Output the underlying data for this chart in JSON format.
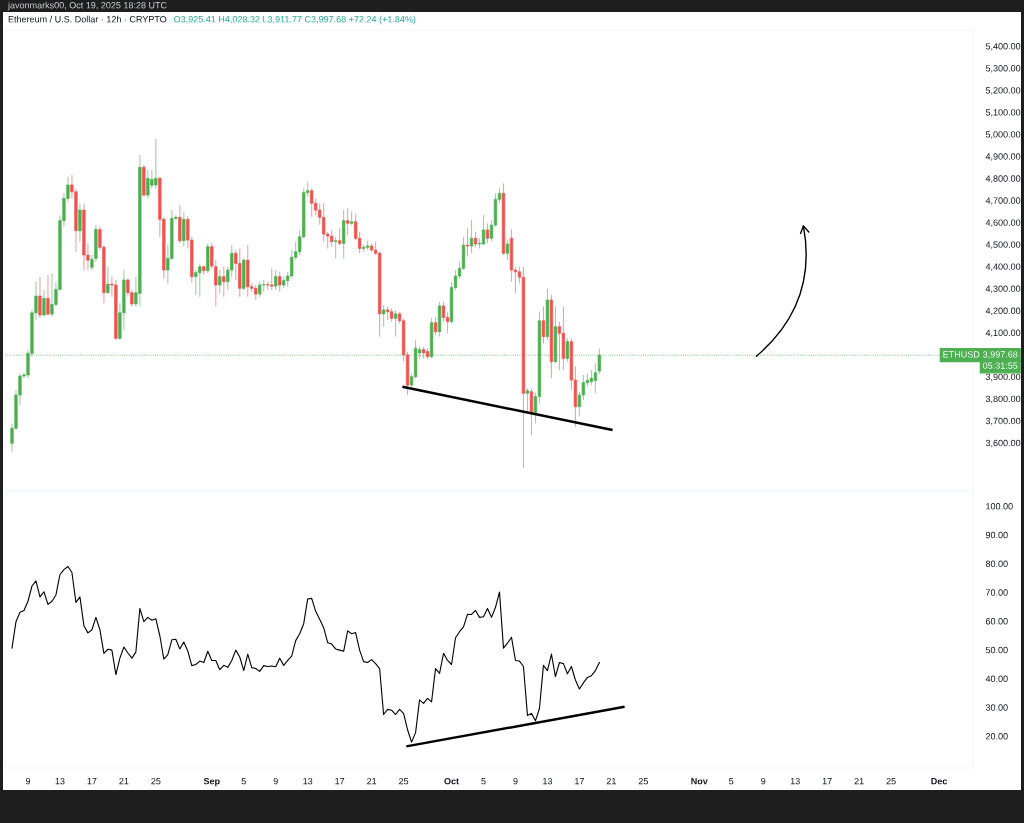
{
  "chart_data": [
    {
      "type": "candlestick",
      "title": "Ethereum / U.S. Dollar · 12h · CRYPTO",
      "annotations": [
        "O3,925.41 H4,028.32 L3,911.77 C3,997.68 +72.24 (+1.84%)",
        "javonmarks00, Oct 19, 2025 18:28 UTC",
        "05:31:55",
        "3,997.68"
      ],
      "colors": [
        "#4caf50",
        "#4caf50",
        "#4caf50",
        "#4caf50",
        "#4caf50",
        "#4caf50",
        "#4caf50",
        "#ef5350",
        "#4caf50",
        "#ef5350",
        "#4caf50",
        "#4caf50",
        "#4caf50",
        "#4caf50",
        "#4caf50",
        "#ef5350",
        "#ef5350",
        "#4caf50",
        "#ef5350",
        "#ef5350",
        "#4caf50",
        "#4caf50",
        "#ef5350",
        "#ef5350",
        "#4caf50",
        "#ef5350",
        "#ef5350",
        "#4caf50",
        "#4caf50",
        "#ef5350",
        "#ef5350",
        "#4caf50",
        "#4caf50",
        "#ef5350",
        "#4caf50",
        "#4caf50",
        "#4caf50",
        "#ef5350",
        "#ef5350",
        "#4caf50",
        "#4caf50",
        "#4caf50",
        "#ef5350",
        "#4caf50",
        "#ef5350",
        "#ef5350",
        "#4caf50",
        "#4caf50",
        "#ef5350",
        "#4caf50",
        "#ef5350",
        "#ef5350",
        "#4caf50",
        "#ef5350",
        "#4caf50",
        "#4caf50",
        "#ef5350",
        "#ef5350",
        "#4caf50",
        "#ef5350",
        "#ef5350",
        "#ef5350",
        "#4caf50",
        "#4caf50",
        "#ef5350",
        "#ef5350",
        "#4caf50",
        "#ef5350",
        "#4caf50",
        "#4caf50",
        "#4caf50",
        "#4caf50",
        "#4caf50",
        "#4caf50",
        "#4caf50",
        "#ef5350",
        "#ef5350",
        "#ef5350",
        "#ef5350",
        "#ef5350",
        "#ef5350",
        "#4caf50",
        "#ef5350",
        "#4caf50",
        "#ef5350",
        "#4caf50",
        "#ef5350",
        "#ef5350",
        "#4caf50",
        "#4caf50",
        "#ef5350",
        "#ef5350",
        "#ef5350",
        "#4caf50",
        "#ef5350",
        "#ef5350",
        "#4caf50",
        "#ef5350",
        "#ef5350",
        "#ef5350",
        "#4caf50",
        "#4caf50",
        "#4caf50",
        "#ef5350",
        "#ef5350",
        "#4caf50",
        "#ef5350",
        "#4caf50",
        "#ef5350",
        "#ef5350",
        "#4caf50",
        "#4caf50",
        "#4caf50",
        "#4caf50",
        "#ef5350",
        "#4caf50",
        "#ef5350",
        "#4caf50",
        "#4caf50",
        "#ef5350",
        "#4caf50",
        "#4caf50",
        "#4caf50",
        "#ef5350",
        "#4caf50",
        "#ef5350",
        "#ef5350",
        "#ef5350",
        "#ef5350",
        "#4caf50",
        "#ef5350",
        "#4caf50",
        "#4caf50",
        "#ef5350",
        "#4caf50",
        "#ef5350",
        "#4caf50",
        "#ef5350",
        "#ef5350",
        "#4caf50",
        "#ef5350",
        "#ef5350",
        "#4caf50",
        "#4caf50",
        "#4caf50",
        "#4caf50",
        "#4caf50",
        "#4caf50"
      ],
      "x": [
        "2025-08-07T00:00",
        "2025-08-07T12:00",
        "2025-08-08T00:00",
        "2025-08-08T12:00",
        "2025-08-09T00:00",
        "2025-08-09T12:00",
        "2025-08-10T00:00",
        "2025-08-10T12:00",
        "2025-08-11T00:00",
        "2025-08-11T12:00",
        "2025-08-12T00:00",
        "2025-08-12T12:00",
        "2025-08-13T00:00",
        "2025-08-13T12:00",
        "2025-08-14T00:00",
        "2025-08-14T12:00",
        "2025-08-15T00:00",
        "2025-08-15T12:00",
        "2025-08-16T00:00",
        "2025-08-16T12:00",
        "2025-08-17T00:00",
        "2025-08-17T12:00",
        "2025-08-18T00:00",
        "2025-08-18T12:00",
        "2025-08-19T00:00",
        "2025-08-19T12:00",
        "2025-08-20T00:00",
        "2025-08-20T12:00",
        "2025-08-21T00:00",
        "2025-08-21T12:00",
        "2025-08-22T00:00",
        "2025-08-22T12:00",
        "2025-08-23T00:00",
        "2025-08-23T12:00",
        "2025-08-24T00:00",
        "2025-08-24T12:00",
        "2025-08-25T00:00",
        "2025-08-25T12:00",
        "2025-08-26T00:00",
        "2025-08-26T12:00",
        "2025-08-27T00:00",
        "2025-08-27T12:00",
        "2025-08-28T00:00",
        "2025-08-28T12:00",
        "2025-08-29T00:00",
        "2025-08-29T12:00",
        "2025-08-30T00:00",
        "2025-08-30T12:00",
        "2025-08-31T00:00",
        "2025-08-31T12:00",
        "2025-09-01T00:00",
        "2025-09-01T12:00",
        "2025-09-02T00:00",
        "2025-09-02T12:00",
        "2025-09-03T00:00",
        "2025-09-03T12:00",
        "2025-09-04T00:00",
        "2025-09-04T12:00",
        "2025-09-05T00:00",
        "2025-09-05T12:00",
        "2025-09-06T00:00",
        "2025-09-06T12:00",
        "2025-09-07T00:00",
        "2025-09-07T12:00",
        "2025-09-08T00:00",
        "2025-09-08T12:00",
        "2025-09-09T00:00",
        "2025-09-09T12:00",
        "2025-09-10T00:00",
        "2025-09-10T12:00",
        "2025-09-11T00:00",
        "2025-09-11T12:00",
        "2025-09-12T00:00",
        "2025-09-12T12:00",
        "2025-09-13T00:00",
        "2025-09-13T12:00",
        "2025-09-14T00:00",
        "2025-09-14T12:00",
        "2025-09-15T00:00",
        "2025-09-15T12:00",
        "2025-09-16T00:00",
        "2025-09-16T12:00",
        "2025-09-17T00:00",
        "2025-09-17T12:00",
        "2025-09-18T00:00",
        "2025-09-18T12:00",
        "2025-09-19T00:00",
        "2025-09-19T12:00",
        "2025-09-20T00:00",
        "2025-09-20T12:00",
        "2025-09-21T00:00",
        "2025-09-21T12:00",
        "2025-09-22T00:00",
        "2025-09-22T12:00",
        "2025-09-23T00:00",
        "2025-09-23T12:00",
        "2025-09-24T00:00",
        "2025-09-24T12:00",
        "2025-09-25T00:00",
        "2025-09-25T12:00",
        "2025-09-26T00:00",
        "2025-09-26T12:00",
        "2025-09-27T00:00",
        "2025-09-27T12:00",
        "2025-09-28T00:00",
        "2025-09-28T12:00",
        "2025-09-29T00:00",
        "2025-09-29T12:00",
        "2025-09-30T00:00",
        "2025-09-30T12:00",
        "2025-10-01T00:00",
        "2025-10-01T12:00",
        "2025-10-02T00:00",
        "2025-10-02T12:00",
        "2025-10-03T00:00",
        "2025-10-03T12:00",
        "2025-10-04T00:00",
        "2025-10-04T12:00",
        "2025-10-05T00:00",
        "2025-10-05T12:00",
        "2025-10-06T00:00",
        "2025-10-06T12:00",
        "2025-10-07T00:00",
        "2025-10-07T12:00",
        "2025-10-08T00:00",
        "2025-10-08T12:00",
        "2025-10-09T00:00",
        "2025-10-09T12:00",
        "2025-10-10T00:00",
        "2025-10-10T12:00",
        "2025-10-11T00:00",
        "2025-10-11T12:00",
        "2025-10-12T00:00",
        "2025-10-12T12:00",
        "2025-10-13T00:00",
        "2025-10-13T12:00",
        "2025-10-14T00:00",
        "2025-10-14T12:00",
        "2025-10-15T00:00",
        "2025-10-15T12:00",
        "2025-10-16T00:00",
        "2025-10-16T12:00",
        "2025-10-17T00:00",
        "2025-10-17T12:00",
        "2025-10-18T00:00",
        "2025-10-18T12:00",
        "2025-10-19T00:00",
        "2025-10-19T12:00"
      ],
      "ohlc": [
        [
          3598,
          3688,
          3560,
          3666
        ],
        [
          3666,
          3840,
          3658,
          3817
        ],
        [
          3817,
          3915,
          3772,
          3903
        ],
        [
          3903,
          3920,
          3895,
          3908
        ],
        [
          3908,
          4021,
          3893,
          4006
        ],
        [
          4006,
          4203,
          3991,
          4190
        ],
        [
          4190,
          4331,
          4157,
          4266
        ],
        [
          4266,
          4354,
          4165,
          4180
        ],
        [
          4180,
          4293,
          4172,
          4255
        ],
        [
          4255,
          4361,
          4180,
          4184
        ],
        [
          4184,
          4369,
          4172,
          4228
        ],
        [
          4228,
          4331,
          4218,
          4296
        ],
        [
          4296,
          4633,
          4293,
          4608
        ],
        [
          4608,
          4732,
          4581,
          4709
        ],
        [
          4709,
          4807,
          4694,
          4770
        ],
        [
          4770,
          4815,
          4709,
          4739
        ],
        [
          4739,
          4754,
          4467,
          4562
        ],
        [
          4562,
          4686,
          4512,
          4656
        ],
        [
          4656,
          4686,
          4384,
          4452
        ],
        [
          4452,
          4505,
          4384,
          4429
        ],
        [
          4396,
          4452,
          4384,
          4432
        ],
        [
          4437,
          4588,
          4422,
          4568
        ],
        [
          4568,
          4581,
          4475,
          4487
        ],
        [
          4487,
          4497,
          4233,
          4281
        ],
        [
          4281,
          4399,
          4278,
          4320
        ],
        [
          4320,
          4354,
          4263,
          4316
        ],
        [
          4316,
          4339,
          4066,
          4074
        ],
        [
          4074,
          4233,
          4066,
          4190
        ],
        [
          4190,
          4384,
          4112,
          4339
        ],
        [
          4339,
          4346,
          4263,
          4281
        ],
        [
          4281,
          4293,
          4218,
          4230
        ],
        [
          4230,
          4354,
          4218,
          4281
        ],
        [
          4278,
          4906,
          4218,
          4850
        ],
        [
          4850,
          4860,
          4717,
          4724
        ],
        [
          4724,
          4838,
          4709,
          4800
        ],
        [
          4769,
          4838,
          4754,
          4795
        ],
        [
          4770,
          4981,
          4754,
          4800
        ],
        [
          4800,
          4807,
          4535,
          4614
        ],
        [
          4614,
          4626,
          4346,
          4384
        ],
        [
          4384,
          4497,
          4323,
          4437
        ],
        [
          4437,
          4656,
          4429,
          4618
        ],
        [
          4618,
          4633,
          4611,
          4623
        ],
        [
          4623,
          4679,
          4505,
          4517
        ],
        [
          4517,
          4648,
          4490,
          4614
        ],
        [
          4614,
          4629,
          4482,
          4520
        ],
        [
          4520,
          4535,
          4327,
          4354
        ],
        [
          4354,
          4384,
          4271,
          4372
        ],
        [
          4372,
          4414,
          4263,
          4399
        ],
        [
          4399,
          4407,
          4361,
          4381
        ],
        [
          4381,
          4505,
          4369,
          4490
        ],
        [
          4490,
          4505,
          4392,
          4402
        ],
        [
          4399,
          4429,
          4218,
          4316
        ],
        [
          4316,
          4384,
          4278,
          4354
        ],
        [
          4354,
          4399,
          4263,
          4331
        ],
        [
          4331,
          4399,
          4293,
          4384
        ],
        [
          4384,
          4498,
          4354,
          4460
        ],
        [
          4460,
          4475,
          4339,
          4414
        ],
        [
          4414,
          4482,
          4263,
          4301
        ],
        [
          4301,
          4437,
          4293,
          4429
        ],
        [
          4429,
          4498,
          4263,
          4308
        ],
        [
          4308,
          4324,
          4286,
          4301
        ],
        [
          4301,
          4316,
          4248,
          4275
        ],
        [
          4275,
          4331,
          4262,
          4316
        ],
        [
          4316,
          4339,
          4286,
          4318
        ],
        [
          4318,
          4331,
          4293,
          4316
        ],
        [
          4316,
          4392,
          4293,
          4311
        ],
        [
          4311,
          4384,
          4293,
          4354
        ],
        [
          4354,
          4376,
          4286,
          4316
        ],
        [
          4316,
          4354,
          4301,
          4336
        ],
        [
          4336,
          4376,
          4308,
          4357
        ],
        [
          4357,
          4475,
          4346,
          4442
        ],
        [
          4442,
          4513,
          4429,
          4467
        ],
        [
          4467,
          4566,
          4452,
          4535
        ],
        [
          4535,
          4755,
          4528,
          4735
        ],
        [
          4735,
          4785,
          4717,
          4744
        ],
        [
          4744,
          4755,
          4626,
          4687
        ],
        [
          4687,
          4709,
          4634,
          4656
        ],
        [
          4656,
          4687,
          4588,
          4623
        ],
        [
          4623,
          4687,
          4513,
          4547
        ],
        [
          4547,
          4558,
          4482,
          4538
        ],
        [
          4538,
          4566,
          4490,
          4513
        ],
        [
          4513,
          4535,
          4437,
          4517
        ],
        [
          4517,
          4573,
          4497,
          4505
        ],
        [
          4505,
          4656,
          4437,
          4608
        ],
        [
          4608,
          4664,
          4543,
          4596
        ],
        [
          4596,
          4649,
          4588,
          4603
        ],
        [
          4603,
          4641,
          4520,
          4528
        ],
        [
          4528,
          4558,
          4460,
          4482
        ],
        [
          4482,
          4498,
          4467,
          4487
        ],
        [
          4487,
          4517,
          4475,
          4493
        ],
        [
          4493,
          4505,
          4467,
          4475
        ],
        [
          4475,
          4513,
          4452,
          4460
        ],
        [
          4460,
          4467,
          4082,
          4185
        ],
        [
          4185,
          4225,
          4127,
          4203
        ],
        [
          4203,
          4218,
          4157,
          4195
        ],
        [
          4195,
          4210,
          4150,
          4165
        ],
        [
          4165,
          4203,
          4082,
          4185
        ],
        [
          4185,
          4195,
          4142,
          4154
        ],
        [
          4154,
          4165,
          3968,
          3999
        ],
        [
          3999,
          4014,
          3817,
          3862
        ],
        [
          3862,
          3915,
          3855,
          3900
        ],
        [
          3900,
          4067,
          3893,
          4029
        ],
        [
          4008,
          4036,
          3983,
          4023
        ],
        [
          4023,
          4036,
          3983,
          4008
        ],
        [
          4014,
          4029,
          3983,
          3991
        ],
        [
          3991,
          4165,
          3983,
          4145
        ],
        [
          4145,
          4172,
          4089,
          4104
        ],
        [
          4104,
          4240,
          4082,
          4221
        ],
        [
          4221,
          4240,
          4150,
          4169
        ],
        [
          4169,
          4195,
          4097,
          4150
        ],
        [
          4150,
          4331,
          4142,
          4305
        ],
        [
          4305,
          4384,
          4293,
          4357
        ],
        [
          4357,
          4422,
          4346,
          4392
        ],
        [
          4392,
          4535,
          4384,
          4497
        ],
        [
          4497,
          4573,
          4445,
          4493
        ],
        [
          4493,
          4611,
          4460,
          4528
        ],
        [
          4528,
          4558,
          4490,
          4502
        ],
        [
          4502,
          4528,
          4482,
          4505
        ],
        [
          4502,
          4634,
          4498,
          4566
        ],
        [
          4566,
          4596,
          4505,
          4528
        ],
        [
          4528,
          4611,
          4513,
          4588
        ],
        [
          4588,
          4732,
          4581,
          4705
        ],
        [
          4705,
          4755,
          4687,
          4732
        ],
        [
          4732,
          4777,
          4452,
          4460
        ],
        [
          4460,
          4520,
          4430,
          4502
        ],
        [
          4528,
          4568,
          4331,
          4384
        ],
        [
          4384,
          4399,
          4278,
          4376
        ],
        [
          4376,
          4399,
          4324,
          4351
        ],
        [
          4351,
          4399,
          3485,
          3825
        ],
        [
          3825,
          3847,
          3734,
          3837
        ],
        [
          3832,
          3847,
          3636,
          3737
        ],
        [
          3737,
          3828,
          3689,
          3810
        ],
        [
          3810,
          4195,
          3779,
          4154
        ],
        [
          4154,
          4218,
          4051,
          4082
        ],
        [
          4082,
          4301,
          4067,
          4248
        ],
        [
          4248,
          4271,
          3893,
          3968
        ],
        [
          3968,
          4218,
          3961,
          4127
        ],
        [
          4127,
          4150,
          3930,
          4097
        ],
        [
          4097,
          4218,
          3930,
          3983
        ],
        [
          3983,
          4074,
          3968,
          4059
        ],
        [
          4059,
          4074,
          3840,
          3885
        ],
        [
          3885,
          3946,
          3673,
          3764
        ],
        [
          3764,
          3832,
          3719,
          3817
        ],
        [
          3817,
          3908,
          3794,
          3873
        ],
        [
          3873,
          3915,
          3855,
          3883
        ],
        [
          3878,
          3930,
          3862,
          3893
        ],
        [
          3883,
          3961,
          3825,
          3918
        ],
        [
          3925.41,
          4028.32,
          3911.77,
          3997.68
        ]
      ],
      "series": [
        {
          "type": "line",
          "color": "#000000",
          "x": [
            "2025-09-25T00:00",
            "2025-10-21T00:00"
          ],
          "values": [
            3853,
            3659
          ]
        }
      ],
      "ref_lines": [
        {
          "axis": "y",
          "value": 3997.68,
          "label": "ETHUSD",
          "color": "#4caf50",
          "line_style": "dotted"
        }
      ],
      "xlim": [
        "2025-08-06T03:00",
        "2025-12-05T06:00"
      ],
      "ylim": [
        3386,
        5473
      ],
      "yticks": [
        {
          "value": 3600,
          "label": "3,600.00"
        },
        {
          "value": 3700,
          "label": "3,700.00"
        },
        {
          "value": 3800,
          "label": "3,800.00"
        },
        {
          "value": 3900,
          "label": "3,900.00"
        },
        {
          "value": 4100,
          "label": "4,100.00"
        },
        {
          "value": 4200,
          "label": "4,200.00"
        },
        {
          "value": 4300,
          "label": "4,300.00"
        },
        {
          "value": 4400,
          "label": "4,400.00"
        },
        {
          "value": 4500,
          "label": "4,500.00"
        },
        {
          "value": 4600,
          "label": "4,600.00"
        },
        {
          "value": 4700,
          "label": "4,700.00"
        },
        {
          "value": 4800,
          "label": "4,800.00"
        },
        {
          "value": 4900,
          "label": "4,900.00"
        },
        {
          "value": 5000,
          "label": "5,000.00"
        },
        {
          "value": 5100,
          "label": "5,100.00"
        },
        {
          "value": 5200,
          "label": "5,200.00"
        },
        {
          "value": 5300,
          "label": "5,300.00"
        },
        {
          "value": 5400,
          "label": "5,400.00"
        }
      ],
      "tick_labels": "y"
    },
    {
      "type": "line",
      "x": [
        "2025-08-07T00:00",
        "2025-08-07T12:00",
        "2025-08-08T00:00",
        "2025-08-08T12:00",
        "2025-08-09T00:00",
        "2025-08-09T12:00",
        "2025-08-10T00:00",
        "2025-08-10T12:00",
        "2025-08-11T00:00",
        "2025-08-11T12:00",
        "2025-08-12T00:00",
        "2025-08-12T12:00",
        "2025-08-13T00:00",
        "2025-08-13T12:00",
        "2025-08-14T00:00",
        "2025-08-14T12:00",
        "2025-08-15T00:00",
        "2025-08-15T12:00",
        "2025-08-16T00:00",
        "2025-08-16T12:00",
        "2025-08-17T00:00",
        "2025-08-17T12:00",
        "2025-08-18T00:00",
        "2025-08-18T12:00",
        "2025-08-19T00:00",
        "2025-08-19T12:00",
        "2025-08-20T00:00",
        "2025-08-20T12:00",
        "2025-08-21T00:00",
        "2025-08-21T12:00",
        "2025-08-22T00:00",
        "2025-08-22T12:00",
        "2025-08-23T00:00",
        "2025-08-23T12:00",
        "2025-08-24T00:00",
        "2025-08-24T12:00",
        "2025-08-25T00:00",
        "2025-08-25T12:00",
        "2025-08-26T00:00",
        "2025-08-26T12:00",
        "2025-08-27T00:00",
        "2025-08-27T12:00",
        "2025-08-28T00:00",
        "2025-08-28T12:00",
        "2025-08-29T00:00",
        "2025-08-29T12:00",
        "2025-08-30T00:00",
        "2025-08-30T12:00",
        "2025-08-31T00:00",
        "2025-08-31T12:00",
        "2025-09-01T00:00",
        "2025-09-01T12:00",
        "2025-09-02T00:00",
        "2025-09-02T12:00",
        "2025-09-03T00:00",
        "2025-09-03T12:00",
        "2025-09-04T00:00",
        "2025-09-04T12:00",
        "2025-09-05T00:00",
        "2025-09-05T12:00",
        "2025-09-06T00:00",
        "2025-09-06T12:00",
        "2025-09-07T00:00",
        "2025-09-07T12:00",
        "2025-09-08T00:00",
        "2025-09-08T12:00",
        "2025-09-09T00:00",
        "2025-09-09T12:00",
        "2025-09-10T00:00",
        "2025-09-10T12:00",
        "2025-09-11T00:00",
        "2025-09-11T12:00",
        "2025-09-12T00:00",
        "2025-09-12T12:00",
        "2025-09-13T00:00",
        "2025-09-13T12:00",
        "2025-09-14T00:00",
        "2025-09-14T12:00",
        "2025-09-15T00:00",
        "2025-09-15T12:00",
        "2025-09-16T00:00",
        "2025-09-16T12:00",
        "2025-09-17T00:00",
        "2025-09-17T12:00",
        "2025-09-18T00:00",
        "2025-09-18T12:00",
        "2025-09-19T00:00",
        "2025-09-19T12:00",
        "2025-09-20T00:00",
        "2025-09-20T12:00",
        "2025-09-21T00:00",
        "2025-09-21T12:00",
        "2025-09-22T00:00",
        "2025-09-22T12:00",
        "2025-09-23T00:00",
        "2025-09-23T12:00",
        "2025-09-24T00:00",
        "2025-09-24T12:00",
        "2025-09-25T00:00",
        "2025-09-25T12:00",
        "2025-09-26T00:00",
        "2025-09-26T12:00",
        "2025-09-27T00:00",
        "2025-09-27T12:00",
        "2025-09-28T00:00",
        "2025-09-28T12:00",
        "2025-09-29T00:00",
        "2025-09-29T12:00",
        "2025-09-30T00:00",
        "2025-09-30T12:00",
        "2025-10-01T00:00",
        "2025-10-01T12:00",
        "2025-10-02T00:00",
        "2025-10-02T12:00",
        "2025-10-03T00:00",
        "2025-10-03T12:00",
        "2025-10-04T00:00",
        "2025-10-04T12:00",
        "2025-10-05T00:00",
        "2025-10-05T12:00",
        "2025-10-06T00:00",
        "2025-10-06T12:00",
        "2025-10-07T00:00",
        "2025-10-07T12:00",
        "2025-10-08T00:00",
        "2025-10-08T12:00",
        "2025-10-09T00:00",
        "2025-10-09T12:00",
        "2025-10-10T00:00",
        "2025-10-10T12:00",
        "2025-10-11T00:00",
        "2025-10-11T12:00",
        "2025-10-12T00:00",
        "2025-10-12T12:00",
        "2025-10-13T00:00",
        "2025-10-13T12:00",
        "2025-10-14T00:00",
        "2025-10-14T12:00",
        "2025-10-15T00:00",
        "2025-10-15T12:00",
        "2025-10-16T00:00",
        "2025-10-16T12:00",
        "2025-10-17T00:00",
        "2025-10-17T12:00",
        "2025-10-18T00:00",
        "2025-10-18T12:00",
        "2025-10-19T00:00",
        "2025-10-19T12:00"
      ],
      "series": [
        {
          "color": "#000000",
          "values": [
            50.6,
            59.8,
            63.1,
            63.7,
            66.9,
            72.2,
            74.0,
            68.4,
            70.2,
            65.8,
            66.9,
            69.1,
            76.2,
            77.9,
            79.0,
            76.9,
            66.5,
            68.4,
            58.4,
            55.9,
            57.0,
            61.3,
            57.0,
            48.8,
            50.2,
            49.9,
            41.4,
            47.1,
            51.0,
            48.9,
            47.1,
            49.2,
            64.4,
            59.8,
            61.3,
            60.3,
            60.8,
            54.9,
            46.8,
            48.3,
            53.5,
            53.7,
            50.3,
            52.7,
            49.6,
            44.5,
            44.9,
            46.1,
            45.6,
            49.5,
            46.3,
            46.3,
            43.1,
            44.6,
            43.9,
            46.3,
            49.9,
            47.5,
            42.8,
            48.5,
            43.8,
            43.5,
            42.5,
            44.5,
            44.2,
            44.4,
            44.1,
            47.1,
            44.6,
            46.3,
            47.8,
            53.2,
            55.6,
            59.1,
            67.7,
            67.9,
            63.4,
            60.6,
            57.7,
            52.5,
            52.0,
            50.3,
            49.9,
            49.5,
            56.6,
            55.6,
            56.0,
            49.9,
            45.9,
            45.6,
            46.6,
            45.2,
            43.5,
            27.5,
            29.3,
            29.0,
            27.5,
            29.3,
            27.9,
            22.2,
            17.9,
            21.2,
            32.6,
            31.4,
            33.1,
            31.9,
            43.5,
            41.8,
            48.8,
            46.3,
            44.9,
            54.2,
            56.3,
            58.0,
            62.4,
            62.3,
            63.7,
            61.3,
            61.5,
            64.4,
            61.3,
            64.8,
            70.1,
            50.6,
            52.3,
            54.4,
            46.3,
            46.1,
            44.2,
            27.2,
            27.9,
            25.3,
            29.6,
            44.6,
            42.8,
            48.5,
            40.7,
            45.6,
            45.2,
            41.7,
            44.2,
            39.5,
            36.4,
            38.5,
            40.4,
            41.0,
            42.8,
            45.6
          ]
        },
        {
          "color": "#000000",
          "x": [
            "2025-09-25T12:00",
            "2025-10-22T12:00"
          ],
          "values": [
            16.5,
            30.1
          ]
        }
      ],
      "xlim": [
        "2025-08-06T03:00",
        "2025-12-05T06:00"
      ],
      "xticks": [
        {
          "value": "2025-08-09",
          "label": "9"
        },
        {
          "value": "2025-08-13",
          "label": "13"
        },
        {
          "value": "2025-08-17",
          "label": "17"
        },
        {
          "value": "2025-08-21",
          "label": "21"
        },
        {
          "value": "2025-08-25",
          "label": "25"
        },
        {
          "value": "2025-09-01",
          "label": "Sep"
        },
        {
          "value": "2025-09-05",
          "label": "5"
        },
        {
          "value": "2025-09-09",
          "label": "9"
        },
        {
          "value": "2025-09-13",
          "label": "13"
        },
        {
          "value": "2025-09-17",
          "label": "17"
        },
        {
          "value": "2025-09-21",
          "label": "21"
        },
        {
          "value": "2025-09-25",
          "label": "25"
        },
        {
          "value": "2025-10-01",
          "label": "Oct"
        },
        {
          "value": "2025-10-05",
          "label": "5"
        },
        {
          "value": "2025-10-09",
          "label": "9"
        },
        {
          "value": "2025-10-13",
          "label": "13"
        },
        {
          "value": "2025-10-17",
          "label": "17"
        },
        {
          "value": "2025-10-21",
          "label": "21"
        },
        {
          "value": "2025-10-25",
          "label": "25"
        },
        {
          "value": "2025-11-01",
          "label": "Nov"
        },
        {
          "value": "2025-11-05",
          "label": "5"
        },
        {
          "value": "2025-11-09",
          "label": "9"
        },
        {
          "value": "2025-11-13",
          "label": "13"
        },
        {
          "value": "2025-11-17",
          "label": "17"
        },
        {
          "value": "2025-11-21",
          "label": "21"
        },
        {
          "value": "2025-11-25",
          "label": "25"
        },
        {
          "value": "2025-12-01",
          "label": "Dec"
        }
      ],
      "ylim": [
        8.9,
        104.9
      ],
      "yticks": [
        {
          "value": 20,
          "label": "20.00"
        },
        {
          "value": 30,
          "label": "30.00"
        },
        {
          "value": 40,
          "label": "40.00"
        },
        {
          "value": 50,
          "label": "50.00"
        },
        {
          "value": 60,
          "label": "60.00"
        },
        {
          "value": 70,
          "label": "70.00"
        },
        {
          "value": 80,
          "label": "80.00"
        },
        {
          "value": 90,
          "label": "90.00"
        },
        {
          "value": 100,
          "label": "100.00"
        }
      ]
    }
  ]
}
